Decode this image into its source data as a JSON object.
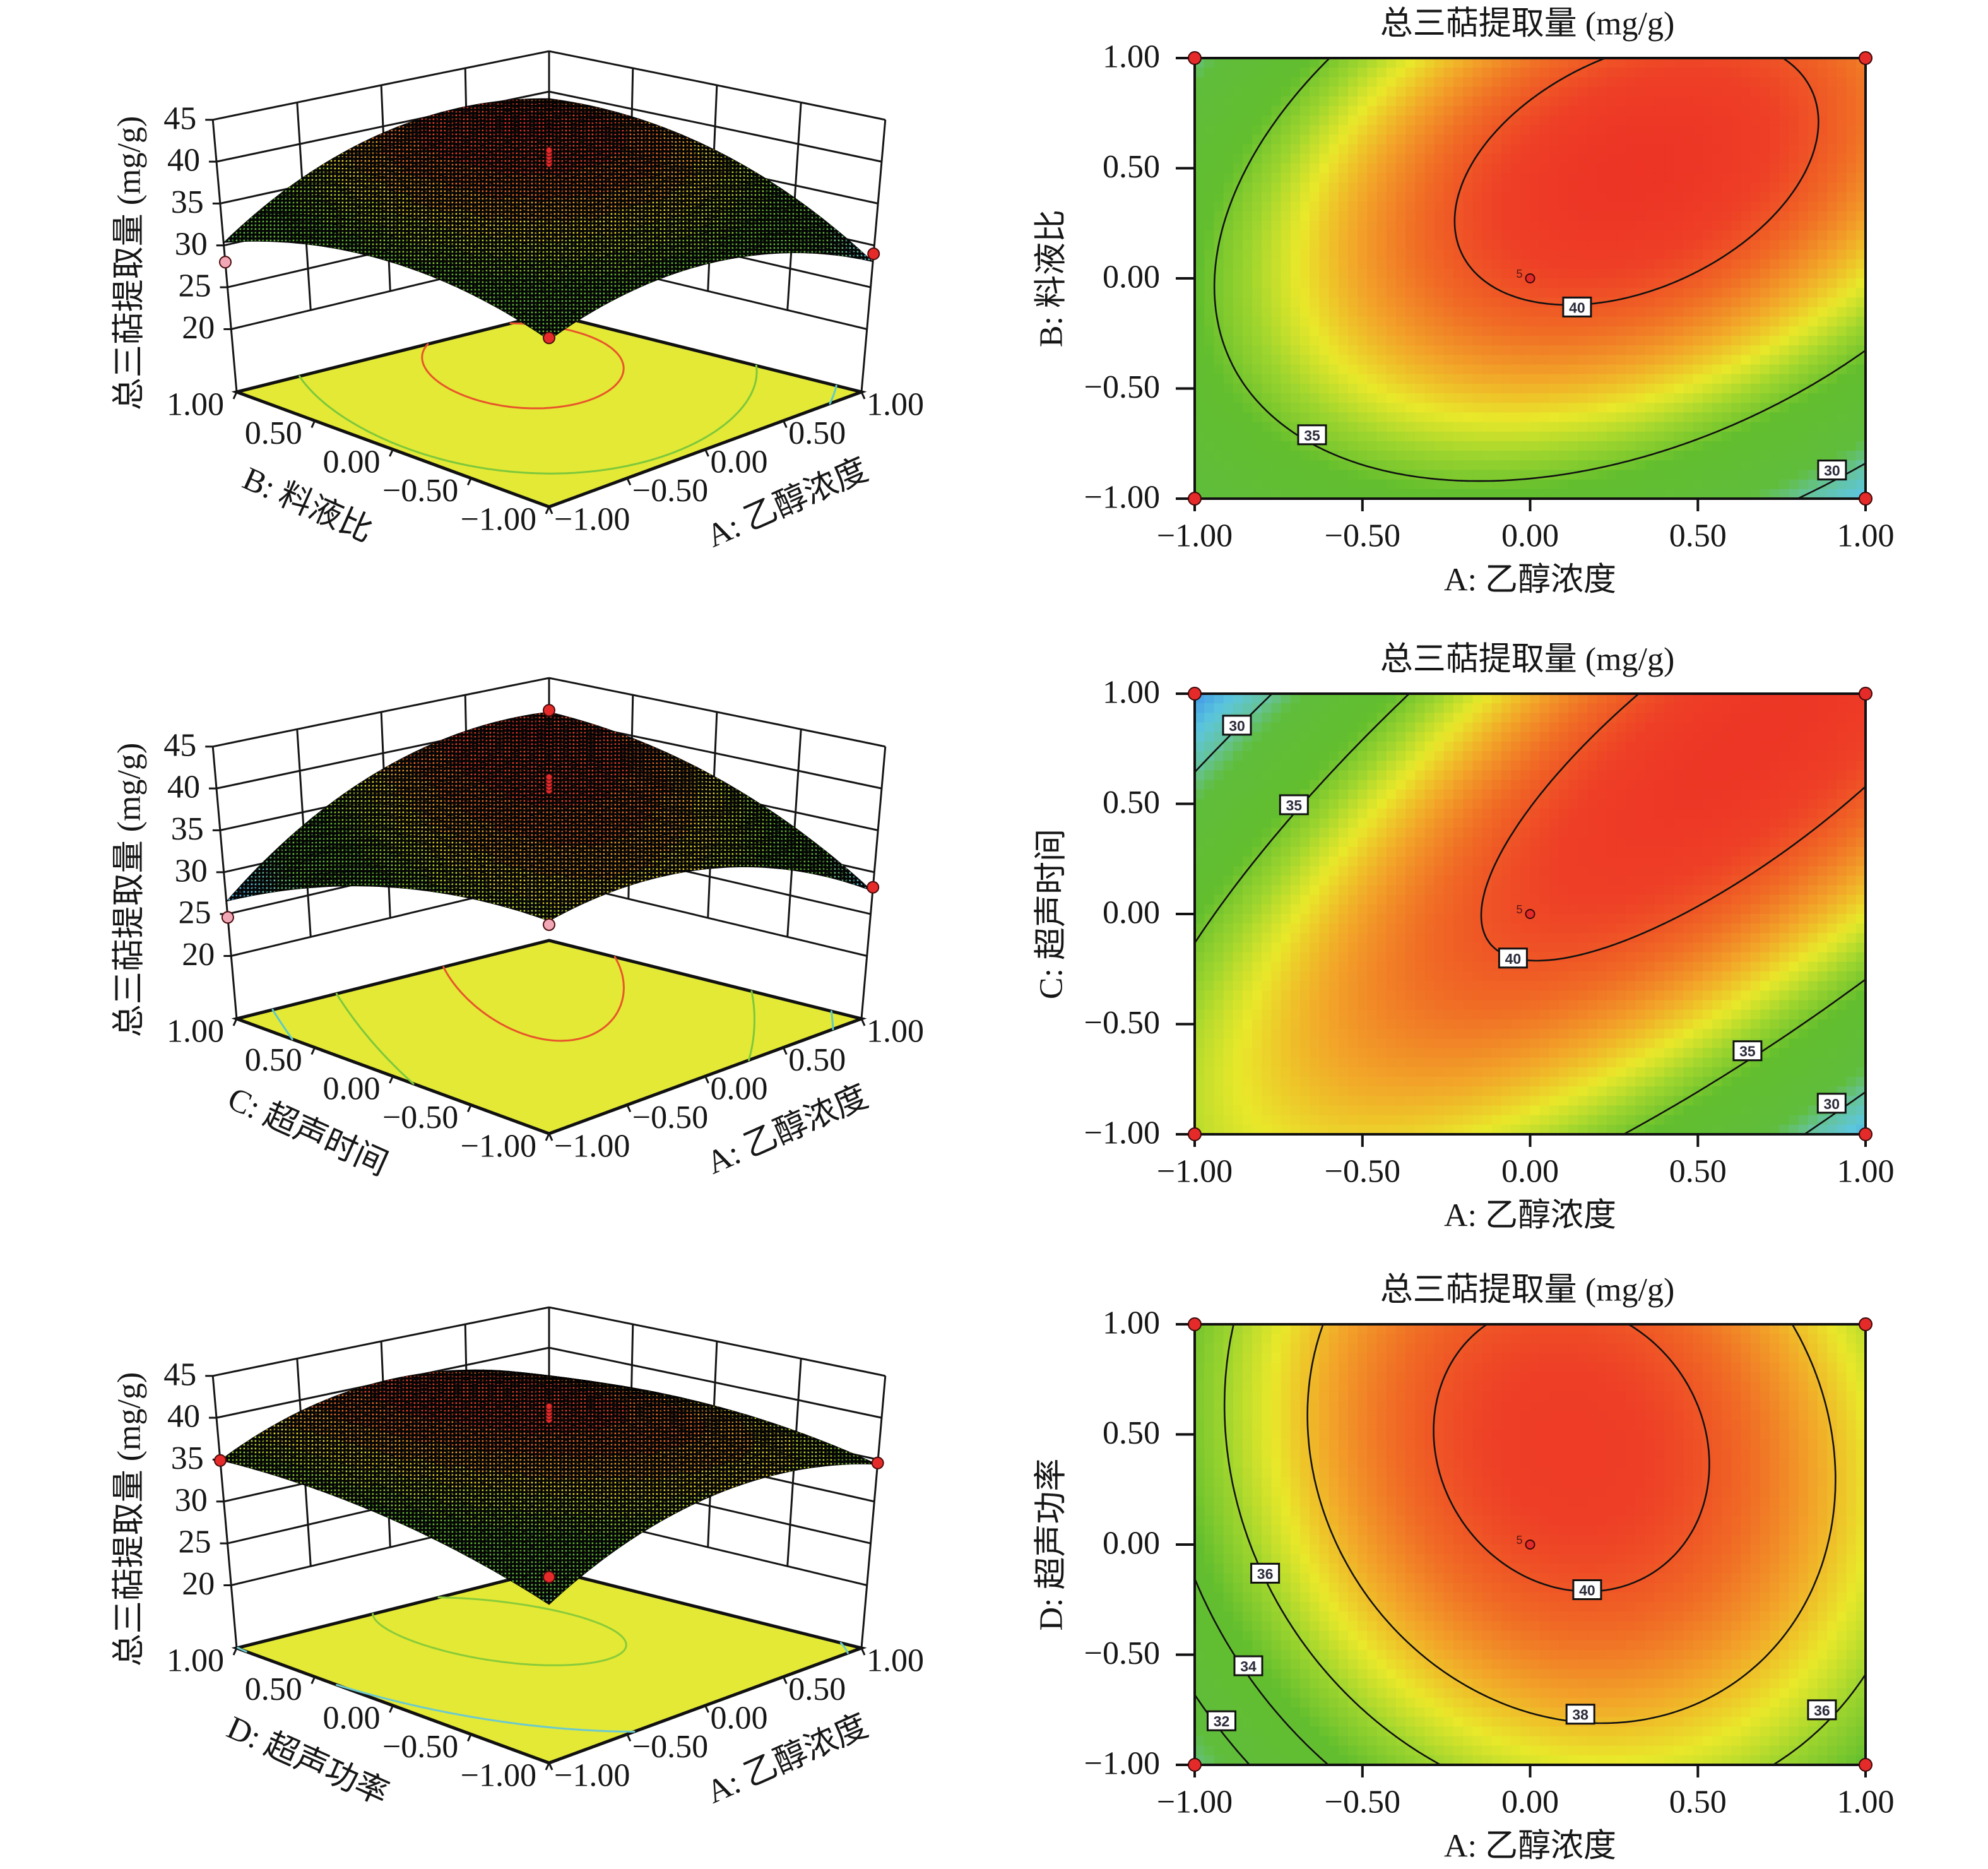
{
  "colors": {
    "floor": "#e3e935",
    "design_point_above": "#e52a2a",
    "design_point_below": "#f2a7b6",
    "contour_line": "#111111"
  },
  "color_scale": [
    {
      "z": 25.5,
      "color": "#3459c9"
    },
    {
      "z": 27.0,
      "color": "#47a3e6"
    },
    {
      "z": 28.5,
      "color": "#5cc6dc"
    },
    {
      "z": 30.0,
      "color": "#66c39a"
    },
    {
      "z": 31.3,
      "color": "#60bd3c"
    },
    {
      "z": 34.5,
      "color": "#62be2e"
    },
    {
      "z": 36.0,
      "color": "#9fd52e"
    },
    {
      "z": 37.2,
      "color": "#e9e82a"
    },
    {
      "z": 38.4,
      "color": "#f2a629"
    },
    {
      "z": 39.5,
      "color": "#f06c25"
    },
    {
      "z": 40.5,
      "color": "#ee4026"
    },
    {
      "z": 41.5,
      "color": "#ec2e25"
    }
  ],
  "chart_data": [
    {
      "id": "surface-A-B",
      "type": "heatmap",
      "subtype": "response-surface-3d",
      "zlabel": "总三萜提取量 (mg/g)",
      "xlabel": "A: 乙醇浓度",
      "ylabel": "B: 料液比",
      "x_ticks": [
        {
          "value": -1,
          "label": "−1.00"
        },
        {
          "value": -0.5,
          "label": "−0.50"
        },
        {
          "value": 0,
          "label": "0.00"
        },
        {
          "value": 0.5,
          "label": "0.50"
        },
        {
          "value": 1,
          "label": "1.00"
        }
      ],
      "y_ticks": [
        {
          "value": -1,
          "label": "−1.00"
        },
        {
          "value": -0.5,
          "label": "−0.50"
        },
        {
          "value": 0,
          "label": "0.00"
        },
        {
          "value": 0.5,
          "label": "0.50"
        },
        {
          "value": 1,
          "label": "1.00"
        }
      ],
      "z_ticks": [
        {
          "value": 20,
          "label": "20"
        },
        {
          "value": 25,
          "label": "25"
        },
        {
          "value": 30,
          "label": "30"
        },
        {
          "value": 35,
          "label": "35"
        },
        {
          "value": 40,
          "label": "40"
        },
        {
          "value": 45,
          "label": "45"
        }
      ],
      "xlim": [
        -1,
        1
      ],
      "ylim": [
        -1,
        1
      ],
      "zlim": [
        20,
        45
      ],
      "model": {
        "intercept": 40.3,
        "x": 1.4,
        "y": 2.55,
        "xy": 3.0,
        "x2": -4.5,
        "y2": -3.61
      },
      "floor_contours": [
        {
          "level": 30,
          "color": "#5fcac6"
        },
        {
          "level": 35,
          "color": "#7dc83c"
        },
        {
          "level": 40,
          "color": "#e8552b"
        }
      ],
      "design_points": [
        {
          "x": -1,
          "y": -1,
          "z": 31.5,
          "position": "above"
        },
        {
          "x": 1,
          "y": -1,
          "z": 29.0,
          "position": "above"
        },
        {
          "x": -1,
          "y": 1,
          "z": 28.0,
          "position": "below"
        }
      ],
      "center_replicates": {
        "x": 0,
        "y": 0,
        "count": 5,
        "z": [
          40.6,
          41.0,
          41.4,
          41.8,
          42.2
        ]
      }
    },
    {
      "id": "contour-A-B",
      "type": "heatmap",
      "subtype": "contour",
      "title": "总三萜提取量 (mg/g)",
      "xlabel": "A: 乙醇浓度",
      "ylabel": "B: 料液比",
      "x_ticks": [
        {
          "value": -1,
          "label": "−1.00"
        },
        {
          "value": -0.5,
          "label": "−0.50"
        },
        {
          "value": 0,
          "label": "0.00"
        },
        {
          "value": 0.5,
          "label": "0.50"
        },
        {
          "value": 1,
          "label": "1.00"
        }
      ],
      "y_ticks": [
        {
          "value": -1,
          "label": "−1.00"
        },
        {
          "value": -0.5,
          "label": "−0.50"
        },
        {
          "value": 0,
          "label": "0.00"
        },
        {
          "value": 0.5,
          "label": "0.50"
        },
        {
          "value": 1,
          "label": "1.00"
        }
      ],
      "xlim": [
        -1,
        1
      ],
      "ylim": [
        -1,
        1
      ],
      "model": {
        "intercept": 40.3,
        "x": 1.4,
        "y": 2.55,
        "xy": 3.0,
        "x2": -4.5,
        "y2": -3.61
      },
      "contour_levels": [
        30,
        35,
        40
      ],
      "contour_labels": [
        {
          "text": "40",
          "x": 0.14,
          "y": -0.13
        },
        {
          "text": "35",
          "x": -0.65,
          "y": -0.71
        },
        {
          "text": "30",
          "x": 0.9,
          "y": -0.87
        }
      ],
      "design_points": [
        {
          "x": -1,
          "y": -1
        },
        {
          "x": 1,
          "y": -1
        },
        {
          "x": -1,
          "y": 1
        },
        {
          "x": 1,
          "y": 1
        }
      ],
      "center_point": {
        "x": 0,
        "y": 0,
        "replicates": 5,
        "label": "5"
      }
    },
    {
      "id": "surface-A-C",
      "type": "heatmap",
      "subtype": "response-surface-3d",
      "zlabel": "总三萜提取量 (mg/g)",
      "xlabel": "A: 乙醇浓度",
      "ylabel": "C: 超声时间",
      "x_ticks": [
        {
          "value": -1,
          "label": "−1.00"
        },
        {
          "value": -0.5,
          "label": "−0.50"
        },
        {
          "value": 0,
          "label": "0.00"
        },
        {
          "value": 0.5,
          "label": "0.50"
        },
        {
          "value": 1,
          "label": "1.00"
        }
      ],
      "y_ticks": [
        {
          "value": -1,
          "label": "−1.00"
        },
        {
          "value": -0.5,
          "label": "−0.50"
        },
        {
          "value": 0,
          "label": "0.00"
        },
        {
          "value": 0.5,
          "label": "0.50"
        },
        {
          "value": 1,
          "label": "1.00"
        }
      ],
      "z_ticks": [
        {
          "value": 20,
          "label": "20"
        },
        {
          "value": 25,
          "label": "25"
        },
        {
          "value": 30,
          "label": "30"
        },
        {
          "value": 35,
          "label": "35"
        },
        {
          "value": 40,
          "label": "40"
        },
        {
          "value": 45,
          "label": "45"
        }
      ],
      "xlim": [
        -1,
        1
      ],
      "ylim": [
        -1,
        1
      ],
      "zlim": [
        20,
        45
      ],
      "model": {
        "intercept": 40.3,
        "x": 1.4,
        "y": 0.8,
        "xy": 5.74,
        "x2": -4.5,
        "y2": -2.94
      },
      "floor_contours": [
        {
          "level": 30,
          "color": "#5fcac6"
        },
        {
          "level": 35,
          "color": "#7dc83c"
        },
        {
          "level": 40,
          "color": "#e8552b"
        }
      ],
      "design_points": [
        {
          "x": 1,
          "y": 1,
          "z": 41.0,
          "position": "above"
        },
        {
          "x": -1,
          "y": 1,
          "z": 24.6,
          "position": "below"
        },
        {
          "x": -1,
          "y": -1,
          "z": 36.0,
          "position": "below"
        },
        {
          "x": 1,
          "y": -1,
          "z": 28.2,
          "position": "above"
        }
      ],
      "center_replicates": {
        "x": 0,
        "y": 0,
        "count": 5,
        "z": [
          40.6,
          41.0,
          41.4,
          41.8,
          42.2
        ]
      }
    },
    {
      "id": "contour-A-C",
      "type": "heatmap",
      "subtype": "contour",
      "title": "总三萜提取量 (mg/g)",
      "xlabel": "A: 乙醇浓度",
      "ylabel": "C: 超声时间",
      "x_ticks": [
        {
          "value": -1,
          "label": "−1.00"
        },
        {
          "value": -0.5,
          "label": "−0.50"
        },
        {
          "value": 0,
          "label": "0.00"
        },
        {
          "value": 0.5,
          "label": "0.50"
        },
        {
          "value": 1,
          "label": "1.00"
        }
      ],
      "y_ticks": [
        {
          "value": -1,
          "label": "−1.00"
        },
        {
          "value": -0.5,
          "label": "−0.50"
        },
        {
          "value": 0,
          "label": "0.00"
        },
        {
          "value": 0.5,
          "label": "0.50"
        },
        {
          "value": 1,
          "label": "1.00"
        }
      ],
      "xlim": [
        -1,
        1
      ],
      "ylim": [
        -1,
        1
      ],
      "model": {
        "intercept": 40.3,
        "x": 1.4,
        "y": 0.8,
        "xy": 5.74,
        "x2": -4.5,
        "y2": -2.94
      },
      "contour_levels": [
        30,
        35,
        40
      ],
      "contour_labels": [
        {
          "text": "30",
          "x": -0.874,
          "y": 0.857
        },
        {
          "text": "35",
          "x": -0.704,
          "y": 0.496
        },
        {
          "text": "40",
          "x": -0.051,
          "y": -0.2
        },
        {
          "text": "35",
          "x": 0.648,
          "y": -0.621
        },
        {
          "text": "30",
          "x": 0.899,
          "y": -0.859
        }
      ],
      "design_points": [
        {
          "x": -1,
          "y": -1
        },
        {
          "x": 1,
          "y": -1
        },
        {
          "x": -1,
          "y": 1
        },
        {
          "x": 1,
          "y": 1
        }
      ],
      "center_point": {
        "x": 0,
        "y": 0,
        "replicates": 5,
        "label": "5"
      }
    },
    {
      "id": "surface-A-D",
      "type": "heatmap",
      "subtype": "response-surface-3d",
      "zlabel": "总三萜提取量 (mg/g)",
      "xlabel": "A: 乙醇浓度",
      "ylabel": "D: 超声功率",
      "x_ticks": [
        {
          "value": -1,
          "label": "−1.00"
        },
        {
          "value": -0.5,
          "label": "−0.50"
        },
        {
          "value": 0,
          "label": "0.00"
        },
        {
          "value": 0.5,
          "label": "0.50"
        },
        {
          "value": 1,
          "label": "1.00"
        }
      ],
      "y_ticks": [
        {
          "value": -1,
          "label": "−1.00"
        },
        {
          "value": -0.5,
          "label": "−0.50"
        },
        {
          "value": 0,
          "label": "0.00"
        },
        {
          "value": 0.5,
          "label": "0.50"
        },
        {
          "value": 1,
          "label": "1.00"
        }
      ],
      "z_ticks": [
        {
          "value": 20,
          "label": "20"
        },
        {
          "value": 25,
          "label": "25"
        },
        {
          "value": 30,
          "label": "30"
        },
        {
          "value": 35,
          "label": "35"
        },
        {
          "value": 40,
          "label": "40"
        },
        {
          "value": 45,
          "label": "45"
        }
      ],
      "xlim": [
        -1,
        1
      ],
      "ylim": [
        -1,
        1
      ],
      "zlim": [
        20,
        45
      ],
      "model": {
        "intercept": 40.3,
        "x": 1.4,
        "y": 1.65,
        "xy": -0.66,
        "x2": -4.5,
        "y2": -1.78
      },
      "floor_contours": [
        {
          "level": 35,
          "color": "#6cc9cf"
        },
        {
          "level": 40,
          "color": "#8acb3a"
        }
      ],
      "design_points": [
        {
          "x": -1,
          "y": 1,
          "z": 34.9,
          "position": "above"
        },
        {
          "x": 1,
          "y": -1,
          "z": 34.6,
          "position": "above"
        },
        {
          "x": -1,
          "y": -1,
          "z": 33.4,
          "position": "above"
        }
      ],
      "center_replicates": {
        "x": 0,
        "y": 0,
        "count": 5,
        "z": [
          40.6,
          41.0,
          41.4,
          41.8,
          42.2
        ]
      }
    },
    {
      "id": "contour-A-D",
      "type": "heatmap",
      "subtype": "contour",
      "title": "总三萜提取量 (mg/g)",
      "xlabel": "A: 乙醇浓度",
      "ylabel": "D: 超声功率",
      "x_ticks": [
        {
          "value": -1,
          "label": "−1.00"
        },
        {
          "value": -0.5,
          "label": "−0.50"
        },
        {
          "value": 0,
          "label": "0.00"
        },
        {
          "value": 0.5,
          "label": "0.50"
        },
        {
          "value": 1,
          "label": "1.00"
        }
      ],
      "y_ticks": [
        {
          "value": -1,
          "label": "−1.00"
        },
        {
          "value": -0.5,
          "label": "−0.50"
        },
        {
          "value": 0,
          "label": "0.00"
        },
        {
          "value": 0.5,
          "label": "0.50"
        },
        {
          "value": 1,
          "label": "1.00"
        }
      ],
      "xlim": [
        -1,
        1
      ],
      "ylim": [
        -1,
        1
      ],
      "model": {
        "intercept": 40.3,
        "x": 1.4,
        "y": 1.65,
        "xy": -0.66,
        "x2": -4.5,
        "y2": -1.78
      },
      "contour_levels": [
        32,
        34,
        36,
        38,
        40
      ],
      "contour_labels": [
        {
          "text": "36",
          "x": -0.79,
          "y": -0.13
        },
        {
          "text": "40",
          "x": 0.17,
          "y": -0.205
        },
        {
          "text": "34",
          "x": -0.84,
          "y": -0.55
        },
        {
          "text": "38",
          "x": 0.15,
          "y": -0.77
        },
        {
          "text": "36",
          "x": 0.87,
          "y": -0.75
        },
        {
          "text": "32",
          "x": -0.92,
          "y": -0.8
        }
      ],
      "design_points": [
        {
          "x": -1,
          "y": -1
        },
        {
          "x": 1,
          "y": -1
        },
        {
          "x": -1,
          "y": 1
        },
        {
          "x": 1,
          "y": 1
        }
      ],
      "center_point": {
        "x": 0,
        "y": 0,
        "replicates": 5,
        "label": "5"
      }
    }
  ]
}
